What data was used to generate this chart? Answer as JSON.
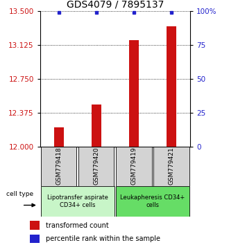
{
  "title": "GDS4079 / 7895137",
  "samples": [
    "GSM779418",
    "GSM779420",
    "GSM779419",
    "GSM779421"
  ],
  "bar_values": [
    12.22,
    12.47,
    13.18,
    13.33
  ],
  "percentile_values": [
    99,
    99,
    99,
    99
  ],
  "ylim_left": [
    12,
    13.5
  ],
  "ylim_right": [
    0,
    100
  ],
  "yticks_left": [
    12,
    12.375,
    12.75,
    13.125,
    13.5
  ],
  "yticks_right": [
    0,
    25,
    50,
    75,
    100
  ],
  "bar_color": "#cc1111",
  "dot_color": "#2222cc",
  "bar_bottom": 12,
  "group_defs": [
    {
      "label": "Lipotransfer aspirate\nCD34+ cells",
      "start": 0,
      "end": 2,
      "color": "#c8f5c8"
    },
    {
      "label": "Leukapheresis CD34+\ncells",
      "start": 2,
      "end": 4,
      "color": "#66dd66"
    }
  ],
  "legend_label_bar": "transformed count",
  "legend_label_dot": "percentile rank within the sample",
  "cell_type_label": "cell type",
  "sample_box_color": "#d3d3d3",
  "title_fontsize": 10,
  "tick_fontsize": 7.5,
  "legend_fontsize": 7,
  "sample_fontsize": 6.5,
  "group_fontsize": 6
}
